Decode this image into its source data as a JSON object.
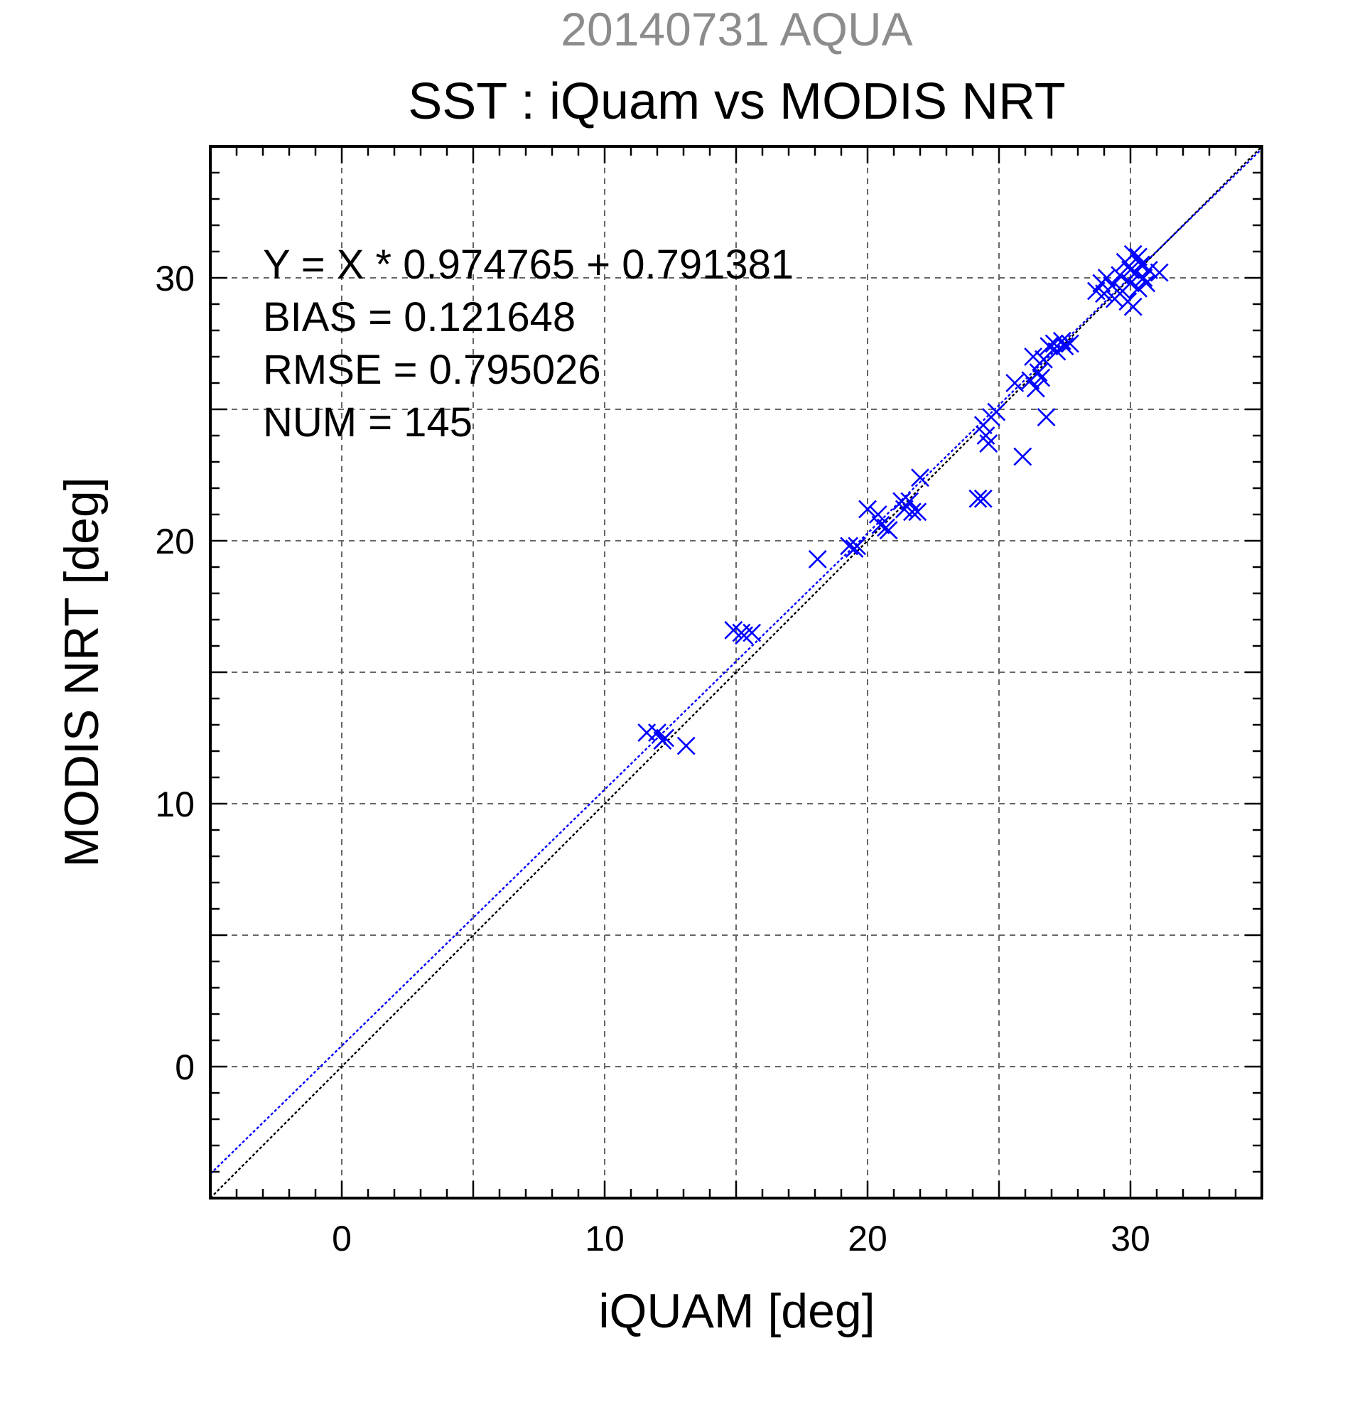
{
  "chart_data": {
    "type": "scatter",
    "supertitle": "20140731 AQUA",
    "title": "SST : iQuam vs MODIS NRT",
    "xlabel": "iQUAM [deg]",
    "ylabel": "MODIS NRT [deg]",
    "xlim": [
      -5,
      35
    ],
    "ylim": [
      -5,
      35
    ],
    "xticks": [
      0,
      10,
      20,
      30
    ],
    "yticks": [
      0,
      10,
      20,
      30
    ],
    "xtick_labels": [
      "0",
      "10",
      "20",
      "30"
    ],
    "ytick_labels": [
      "0",
      "10",
      "20",
      "30"
    ],
    "grid": true,
    "marker": "x",
    "colors": {
      "points": "#0000ff",
      "fit_line": "#0000ff",
      "identity_line": "#000000",
      "supertitle": "#8c8c8c"
    },
    "annotations": [
      "Y = X * 0.974765 + 0.791381",
      "BIAS = 0.121648",
      "RMSE = 0.795026",
      "NUM = 145"
    ],
    "fit": {
      "slope": 0.974765,
      "intercept": 0.791381
    },
    "identity": {
      "slope": 1,
      "intercept": 0
    },
    "points": [
      [
        11.6,
        12.7
      ],
      [
        12.0,
        12.7
      ],
      [
        12.2,
        12.4
      ],
      [
        12.3,
        12.5
      ],
      [
        13.1,
        12.2
      ],
      [
        14.9,
        16.6
      ],
      [
        15.2,
        16.5
      ],
      [
        15.3,
        16.4
      ],
      [
        15.6,
        16.5
      ],
      [
        18.1,
        19.3
      ],
      [
        19.3,
        19.8
      ],
      [
        19.5,
        19.7
      ],
      [
        19.6,
        19.8
      ],
      [
        20.0,
        21.2
      ],
      [
        20.4,
        21.0
      ],
      [
        20.5,
        20.6
      ],
      [
        20.7,
        20.5
      ],
      [
        20.8,
        20.4
      ],
      [
        21.3,
        21.5
      ],
      [
        21.4,
        21.2
      ],
      [
        21.6,
        21.5
      ],
      [
        21.7,
        21.1
      ],
      [
        21.9,
        21.1
      ],
      [
        22.0,
        22.4
      ],
      [
        24.2,
        21.6
      ],
      [
        24.4,
        21.6
      ],
      [
        24.4,
        24.4
      ],
      [
        24.5,
        24.0
      ],
      [
        24.6,
        23.7
      ],
      [
        24.7,
        24.7
      ],
      [
        24.9,
        24.9
      ],
      [
        25.6,
        26.0
      ],
      [
        25.9,
        23.2
      ],
      [
        26.2,
        26.1
      ],
      [
        26.3,
        27.0
      ],
      [
        26.4,
        25.8
      ],
      [
        26.5,
        26.4
      ],
      [
        26.6,
        26.2
      ],
      [
        26.7,
        26.9
      ],
      [
        26.8,
        24.7
      ],
      [
        26.9,
        27.4
      ],
      [
        27.1,
        27.5
      ],
      [
        27.2,
        27.2
      ],
      [
        27.4,
        27.6
      ],
      [
        27.5,
        27.4
      ],
      [
        27.7,
        27.5
      ],
      [
        28.7,
        29.5
      ],
      [
        28.9,
        29.8
      ],
      [
        29.0,
        29.4
      ],
      [
        29.1,
        30.0
      ],
      [
        29.3,
        29.7
      ],
      [
        29.4,
        29.2
      ],
      [
        29.6,
        30.1
      ],
      [
        29.7,
        29.5
      ],
      [
        29.8,
        30.6
      ],
      [
        29.9,
        29.1
      ],
      [
        30.0,
        30.3
      ],
      [
        30.0,
        29.8
      ],
      [
        30.1,
        30.9
      ],
      [
        30.1,
        28.9
      ],
      [
        30.2,
        30.2
      ],
      [
        30.3,
        30.8
      ],
      [
        30.3,
        29.6
      ],
      [
        30.4,
        30.5
      ],
      [
        30.5,
        30.0
      ],
      [
        30.6,
        29.8
      ],
      [
        30.7,
        30.3
      ],
      [
        31.1,
        30.2
      ]
    ]
  }
}
